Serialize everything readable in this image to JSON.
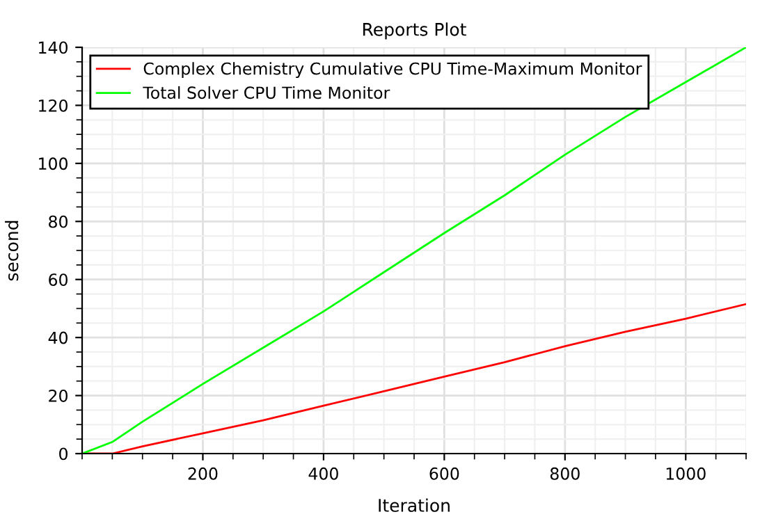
{
  "chart_data": {
    "type": "line",
    "title": "Reports Plot",
    "xlabel": "Iteration",
    "ylabel": "second",
    "x": [
      0,
      50,
      100,
      200,
      300,
      400,
      500,
      600,
      700,
      800,
      900,
      1000,
      1100
    ],
    "series": [
      {
        "name": "Complex Chemistry Cumulative CPU Time-Maximum Monitor",
        "color": "#ff0000",
        "values": [
          0,
          0,
          2.5,
          7,
          11.5,
          16.5,
          21.5,
          26.5,
          31.5,
          37,
          42,
          46.5,
          51.5
        ]
      },
      {
        "name": "Total Solver CPU Time Monitor",
        "color": "#00ff00",
        "values": [
          0,
          4,
          11,
          24,
          36.5,
          49,
          62.5,
          76,
          89,
          103,
          116,
          128,
          140
        ]
      }
    ],
    "xlim": [
      0,
      1100
    ],
    "xticks": [
      200,
      400,
      600,
      800,
      1000
    ],
    "ylim": [
      0,
      140
    ],
    "yticks": [
      0,
      20,
      40,
      60,
      80,
      100,
      120,
      140
    ],
    "grid": true,
    "legend": "top left",
    "marker": "none",
    "line_style": "solid"
  }
}
